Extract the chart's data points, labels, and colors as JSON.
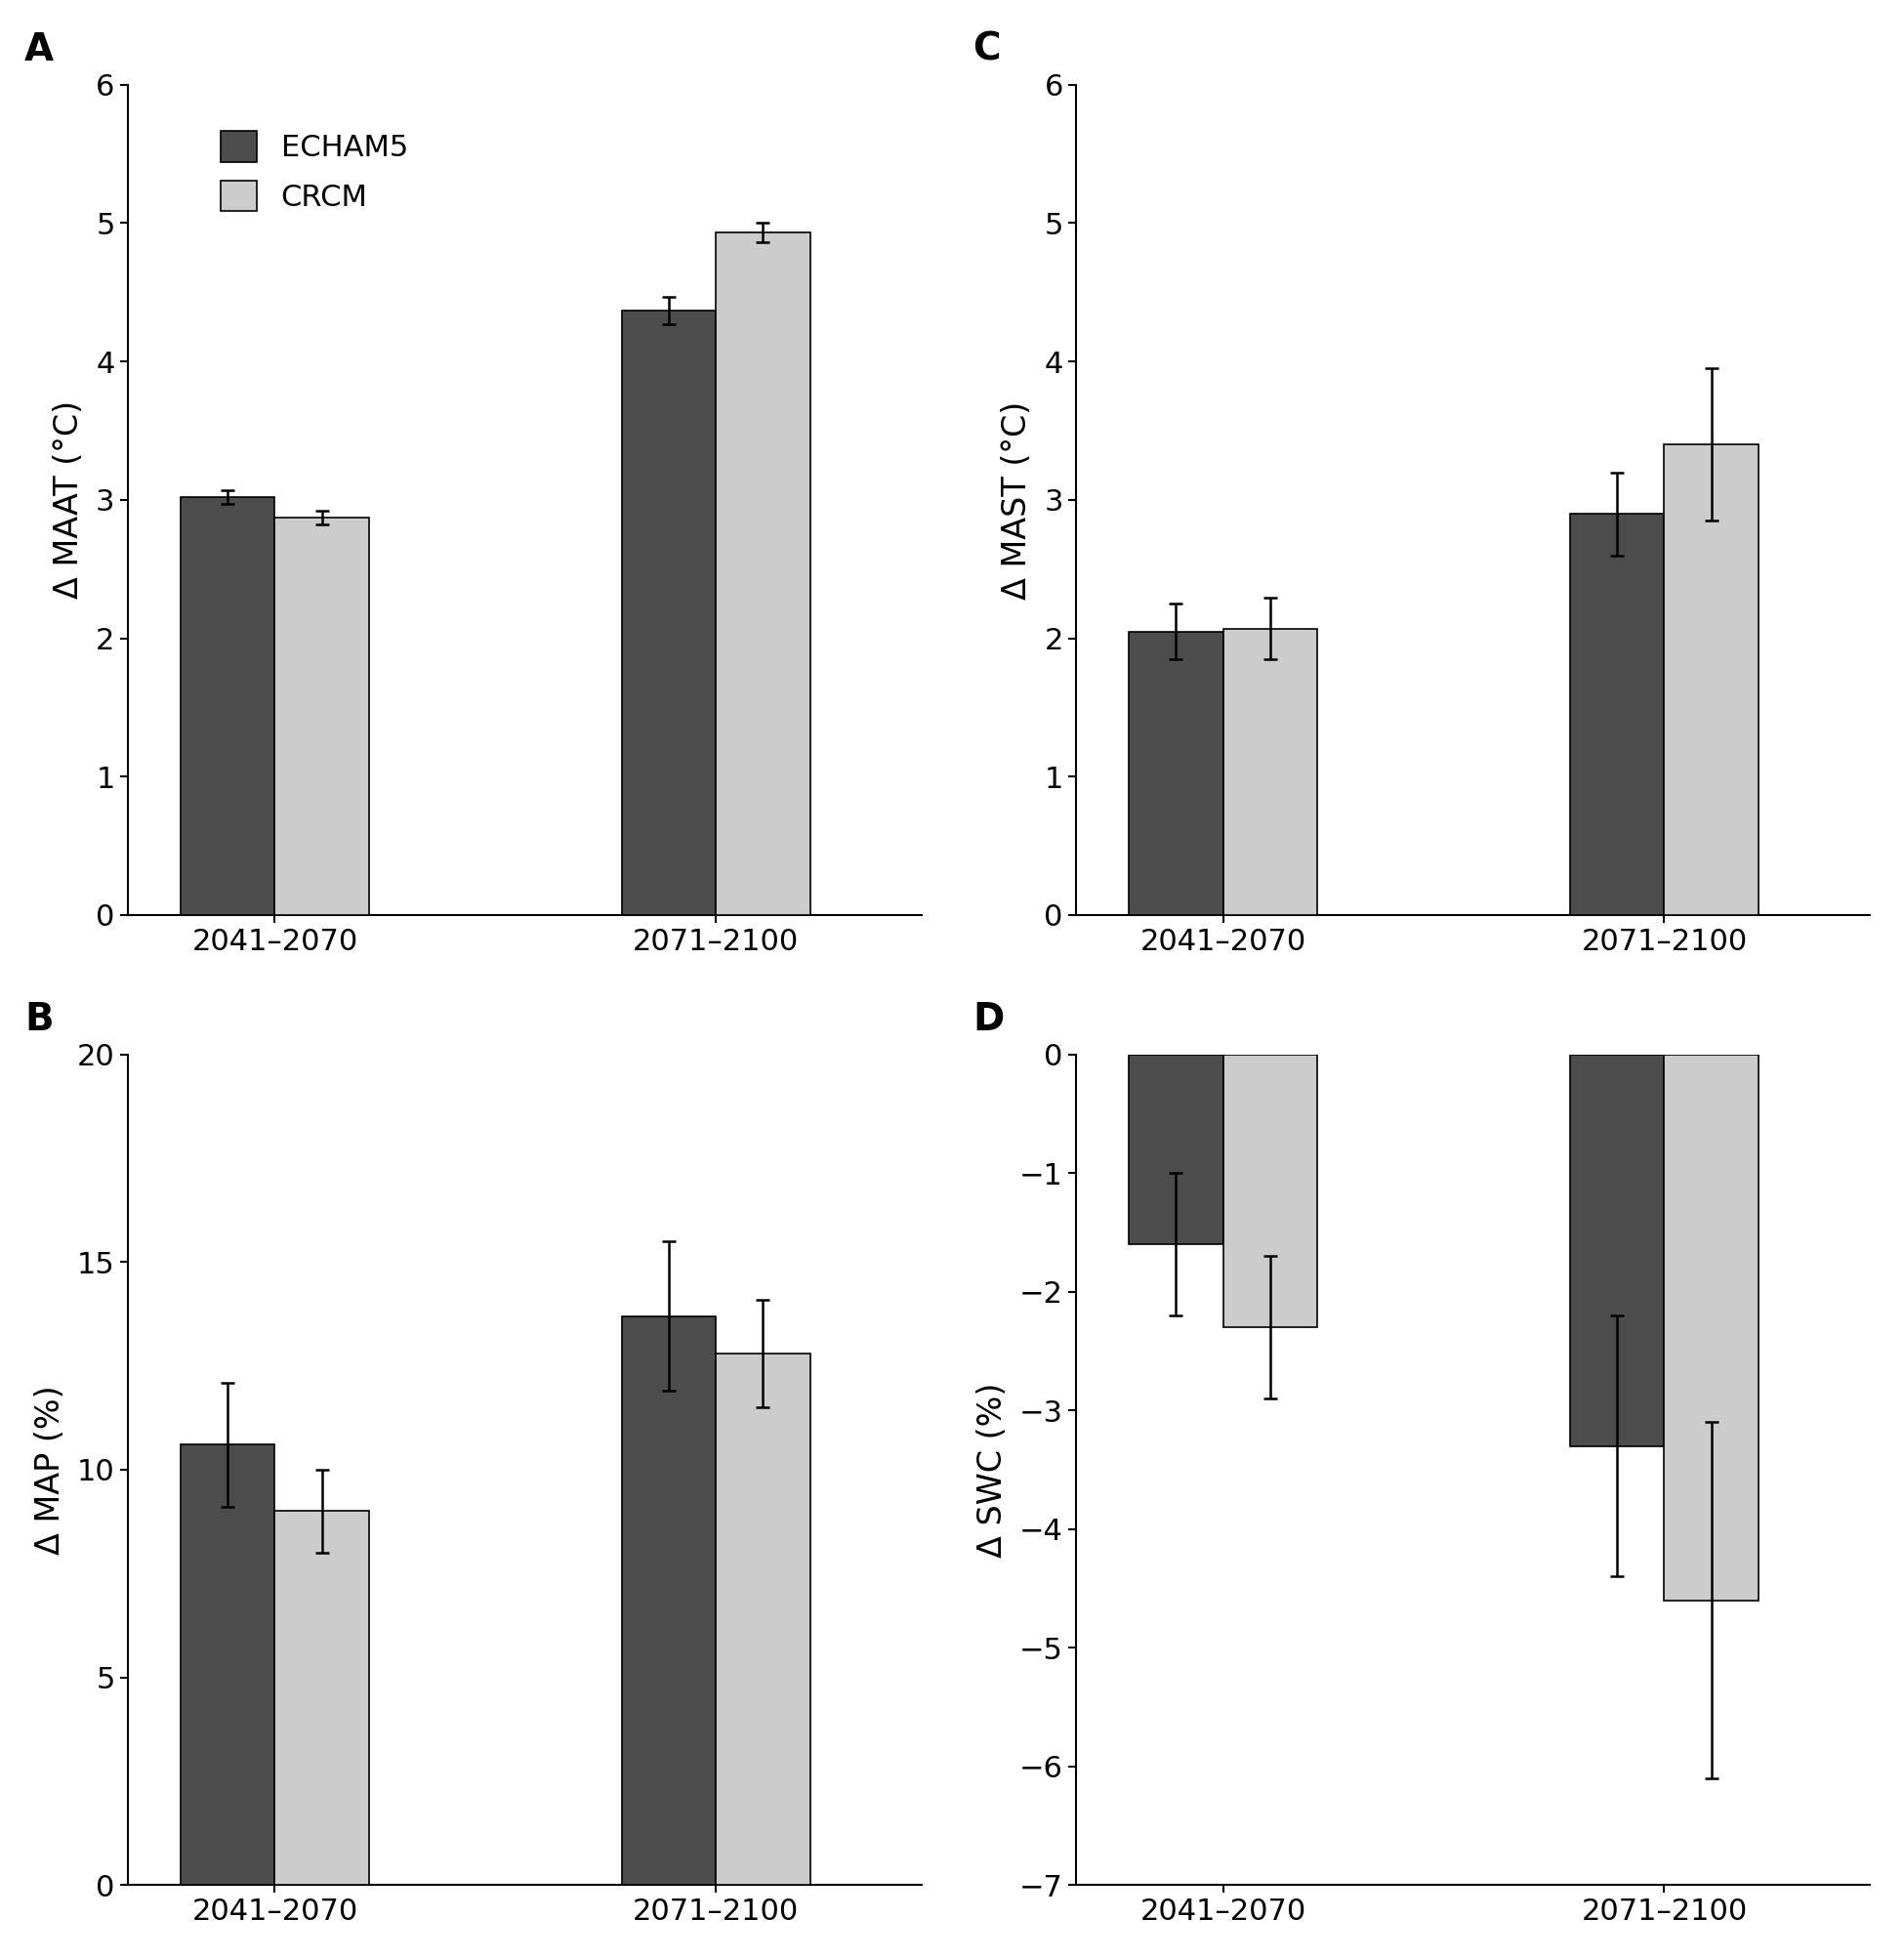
{
  "panels": [
    {
      "label": "A",
      "ylabel": "Δ MAAT (°C)",
      "ylim": [
        0,
        6
      ],
      "yticks": [
        0,
        1,
        2,
        3,
        4,
        5,
        6
      ],
      "ytick_labels": [
        "0",
        "1",
        "2",
        "3",
        "4",
        "5",
        "6"
      ],
      "groups": [
        "2041–2070",
        "2071–2100"
      ],
      "echam5_values": [
        3.02,
        4.37
      ],
      "crcm_values": [
        2.87,
        4.93
      ],
      "echam5_errors": [
        0.05,
        0.1
      ],
      "crcm_errors": [
        0.05,
        0.07
      ],
      "show_legend": true,
      "invert_y": false
    },
    {
      "label": "C",
      "ylabel": "Δ MAST (°C)",
      "ylim": [
        0,
        6
      ],
      "yticks": [
        0,
        1,
        2,
        3,
        4,
        5,
        6
      ],
      "ytick_labels": [
        "0",
        "1",
        "2",
        "3",
        "4",
        "5",
        "6"
      ],
      "groups": [
        "2041–2070",
        "2071–2100"
      ],
      "echam5_values": [
        2.05,
        2.9
      ],
      "crcm_values": [
        2.07,
        3.4
      ],
      "echam5_errors": [
        0.2,
        0.3
      ],
      "crcm_errors": [
        0.22,
        0.55
      ],
      "show_legend": false,
      "invert_y": false
    },
    {
      "label": "B",
      "ylabel": "Δ MAP (%)",
      "ylim": [
        0,
        20
      ],
      "yticks": [
        0,
        5,
        10,
        15,
        20
      ],
      "ytick_labels": [
        "0",
        "5",
        "10",
        "15",
        "20"
      ],
      "groups": [
        "2041–2070",
        "2071–2100"
      ],
      "echam5_values": [
        10.6,
        13.7
      ],
      "crcm_values": [
        9.0,
        12.8
      ],
      "echam5_errors": [
        1.5,
        1.8
      ],
      "crcm_errors": [
        1.0,
        1.3
      ],
      "show_legend": false,
      "invert_y": false
    },
    {
      "label": "D",
      "ylabel": "Δ SWC (%)",
      "ylim": [
        0,
        7
      ],
      "yticks": [
        0,
        1,
        2,
        3,
        4,
        5,
        6,
        7
      ],
      "ytick_labels": [
        "0",
        "−1",
        "−2",
        "−3",
        "−4",
        "−5",
        "−6",
        "−7"
      ],
      "groups": [
        "2041–2070",
        "2071–2100"
      ],
      "echam5_values": [
        1.6,
        3.3
      ],
      "crcm_values": [
        2.3,
        4.6
      ],
      "echam5_errors": [
        0.6,
        1.1
      ],
      "crcm_errors": [
        0.6,
        1.5
      ],
      "show_legend": false,
      "invert_y": true
    }
  ],
  "echam5_color": "#4d4d4d",
  "crcm_color": "#cccccc",
  "bar_width": 0.32,
  "legend_labels": [
    "ECHAM5",
    "CRCM"
  ],
  "xtick_fontsize": 22,
  "ytick_fontsize": 22,
  "ylabel_fontsize": 24,
  "label_fontsize": 28,
  "legend_fontsize": 22,
  "capsize": 5,
  "elinewidth": 1.8,
  "capthick": 1.8,
  "edge_color": "#000000"
}
